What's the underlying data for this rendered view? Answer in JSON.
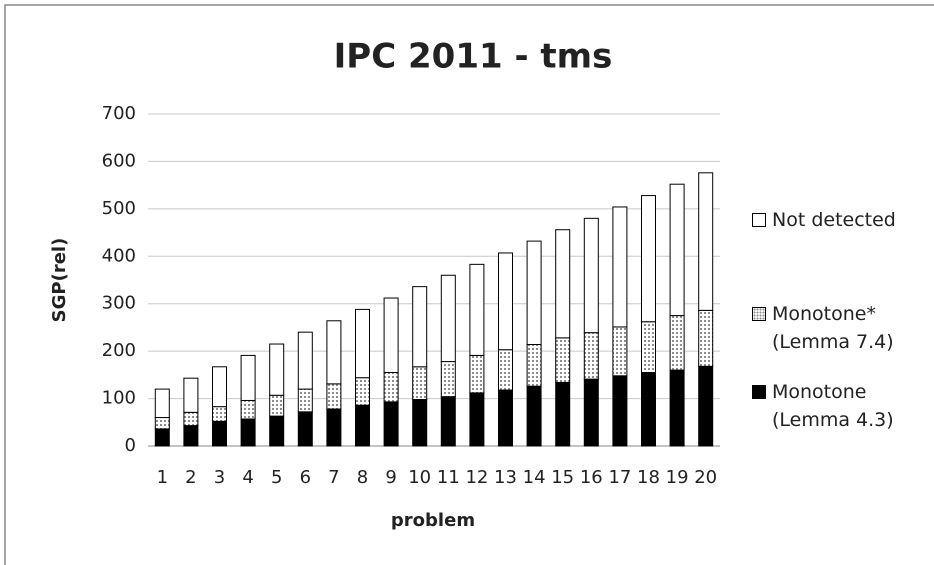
{
  "chart_data": {
    "type": "stacked-bar",
    "title": "IPC 2011 - tms",
    "x_label": "problem",
    "y_label": "SGP(rel)",
    "categories": [
      "1",
      "2",
      "3",
      "4",
      "5",
      "6",
      "7",
      "8",
      "9",
      "10",
      "11",
      "12",
      "13",
      "14",
      "15",
      "16",
      "17",
      "18",
      "19",
      "20"
    ],
    "series": [
      {
        "name": "Monotone (Lemma 4.3)",
        "color": "#000000",
        "values": [
          36,
          43,
          52,
          57,
          63,
          72,
          78,
          86,
          93,
          98,
          104,
          112,
          118,
          126,
          134,
          141,
          148,
          155,
          160,
          168
        ]
      },
      {
        "name": "Monotone* (Lemma 7.4)",
        "color": "#8c8c8c",
        "fill_pattern": "dotted",
        "values": [
          24,
          28,
          31,
          39,
          44,
          48,
          53,
          58,
          62,
          69,
          74,
          79,
          85,
          88,
          94,
          98,
          103,
          107,
          115,
          118
        ]
      },
      {
        "name": "Not detected",
        "color": "#ffffff",
        "values": [
          60,
          72,
          84,
          95,
          108,
          120,
          133,
          144,
          157,
          169,
          182,
          192,
          204,
          218,
          228,
          241,
          253,
          266,
          277,
          290
        ]
      }
    ],
    "ylim": [
      0,
      700
    ],
    "yticks": [
      0,
      100,
      200,
      300,
      400,
      500,
      600,
      700
    ],
    "grid": true
  }
}
